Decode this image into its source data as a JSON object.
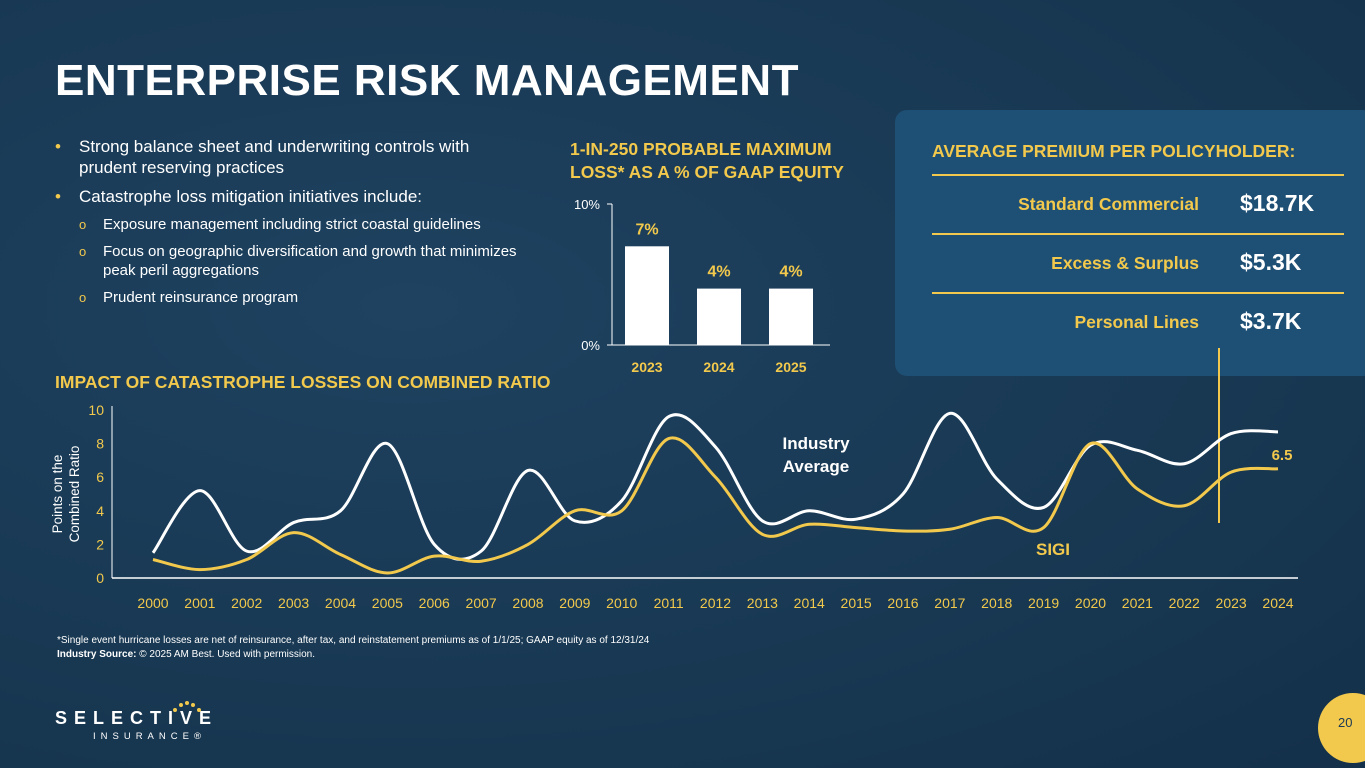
{
  "slide": {
    "title": "ENTERPRISE RISK MANAGEMENT",
    "page_number": "20"
  },
  "bullets": [
    {
      "level": 1,
      "text": "Strong balance sheet and underwriting controls with prudent reserving practices"
    },
    {
      "level": 1,
      "text": "Catastrophe loss mitigation initiatives include:"
    },
    {
      "level": 2,
      "text": "Exposure management including strict coastal guidelines"
    },
    {
      "level": 2,
      "text": "Focus on geographic diversification and growth that minimizes peak peril aggregations"
    },
    {
      "level": 2,
      "text": "Prudent reinsurance program"
    }
  ],
  "pml": {
    "title": "1-IN-250 PROBABLE MAXIMUM LOSS* AS A % OF GAAP EQUITY"
  },
  "premium": {
    "title": "AVERAGE PREMIUM PER POLICYHOLDER:",
    "rows": [
      {
        "label": "Standard Commercial",
        "value": "$18.7K"
      },
      {
        "label": "Excess & Surplus",
        "value": "$5.3K"
      },
      {
        "label": "Personal Lines",
        "value": "$3.7K"
      }
    ]
  },
  "cat": {
    "title": "IMPACT OF CATASTROPHE LOSSES ON COMBINED RATIO"
  },
  "chart_data": [
    {
      "type": "bar",
      "title": "1-IN-250 PROBABLE MAXIMUM LOSS* AS A % OF GAAP EQUITY",
      "categories": [
        "2023",
        "2024",
        "2025"
      ],
      "values": [
        7,
        4,
        4
      ],
      "data_labels": [
        "7%",
        "4%",
        "4%"
      ],
      "ylim": [
        0,
        10
      ],
      "y_ticks": [
        "0%",
        "10%"
      ],
      "bar_color": "#ffffff",
      "label_color": "#f2c94c"
    },
    {
      "type": "line",
      "title": "IMPACT OF CATASTROPHE LOSSES ON COMBINED RATIO",
      "ylabel": "Points on the Combined Ratio",
      "ylim": [
        0,
        10
      ],
      "y_ticks": [
        0,
        2,
        4,
        6,
        8,
        10
      ],
      "x": [
        "2000",
        "2001",
        "2002",
        "2003",
        "2004",
        "2005",
        "2006",
        "2007",
        "2008",
        "2009",
        "2010",
        "2011",
        "2012",
        "2013",
        "2014",
        "2015",
        "2016",
        "2017",
        "2018",
        "2019",
        "2020",
        "2021",
        "2022",
        "2023",
        "2024"
      ],
      "series": [
        {
          "name": "Industry Average",
          "color": "#ffffff",
          "values": [
            1.5,
            5.2,
            1.6,
            3.3,
            4.0,
            8.0,
            2.0,
            1.6,
            6.4,
            3.4,
            4.6,
            9.6,
            7.8,
            3.4,
            4.0,
            3.5,
            5.0,
            9.8,
            5.9,
            4.2,
            7.9,
            7.6,
            6.8,
            8.6,
            8.7
          ]
        },
        {
          "name": "SIGI",
          "color": "#f2c94c",
          "values": [
            1.1,
            0.5,
            1.1,
            2.7,
            1.4,
            0.3,
            1.3,
            1.0,
            2.0,
            4.0,
            4.0,
            8.3,
            6.0,
            2.6,
            3.2,
            3.0,
            2.8,
            2.9,
            3.6,
            3.0,
            8.0,
            5.3,
            4.3,
            6.3,
            6.5
          ]
        }
      ],
      "series_labels": {
        "industry": "Industry Average",
        "sigi": "SIGI",
        "last_value": "6.5"
      },
      "line_color_industry": "#ffffff",
      "line_color_sigi": "#f2c94c"
    }
  ],
  "footnote": {
    "line1": "*Single event hurricane losses are net of reinsurance, after tax, and reinstatement premiums as of 1/1/25; GAAP equity as of 12/31/24",
    "source_label": "Industry Source:",
    "source_text": "  © 2025 AM Best. Used with permission."
  },
  "logo": {
    "word": "SELECTIVE",
    "sub": "INSURANCE®"
  }
}
